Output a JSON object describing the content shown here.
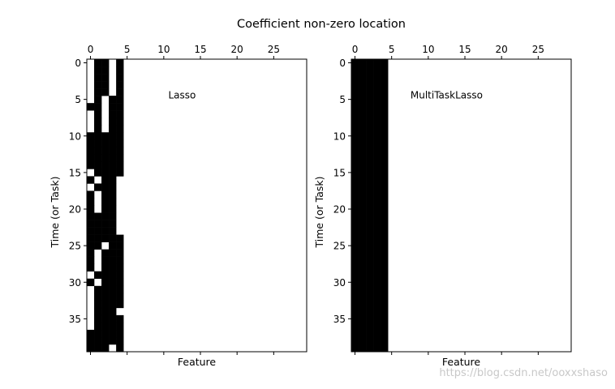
{
  "figure": {
    "title": "Coefficient non-zero location",
    "watermark": "https://blog.csdn.net/ooxxshaso"
  },
  "chart_data": [
    {
      "type": "heatmap",
      "annotation": "Lasso",
      "xlabel": "Feature",
      "ylabel": "Time (or Task)",
      "xlim": [
        -0.5,
        29.5
      ],
      "ylim": [
        39.5,
        -0.5
      ],
      "xticks": [
        0,
        5,
        10,
        15,
        20,
        25
      ],
      "xtick_labels": [
        "0",
        "5",
        "10",
        "15",
        "20",
        "25"
      ],
      "yticks": [
        0,
        5,
        10,
        15,
        20,
        25,
        30,
        35
      ],
      "ytick_labels": [
        "0",
        "5",
        "10",
        "15",
        "20",
        "25",
        "30",
        "35"
      ],
      "x_axis_position": "top",
      "colormap": "binary",
      "n_rows": 40,
      "n_cols": 30,
      "nonzero_rows": [
        [
          1,
          2,
          4
        ],
        [
          1,
          2,
          4
        ],
        [
          1,
          2,
          4
        ],
        [
          1,
          2,
          4
        ],
        [
          1,
          2,
          4
        ],
        [
          1,
          3,
          4
        ],
        [
          0,
          1,
          3,
          4
        ],
        [
          1,
          3,
          4
        ],
        [
          1,
          3,
          4
        ],
        [
          1,
          3,
          4
        ],
        [
          0,
          1,
          2,
          3,
          4
        ],
        [
          0,
          1,
          2,
          3,
          4
        ],
        [
          0,
          1,
          2,
          3,
          4
        ],
        [
          0,
          1,
          2,
          3,
          4
        ],
        [
          0,
          1,
          2,
          3,
          4
        ],
        [
          1,
          2,
          3,
          4
        ],
        [
          0,
          2,
          3
        ],
        [
          1,
          2,
          3
        ],
        [
          0,
          2,
          3
        ],
        [
          0,
          2,
          3
        ],
        [
          0,
          2,
          3
        ],
        [
          0,
          1,
          2,
          3
        ],
        [
          0,
          1,
          2,
          3
        ],
        [
          0,
          1,
          2,
          3
        ],
        [
          0,
          1,
          2,
          3,
          4
        ],
        [
          0,
          1,
          3,
          4
        ],
        [
          0,
          2,
          3,
          4
        ],
        [
          0,
          2,
          3,
          4
        ],
        [
          0,
          2,
          3,
          4
        ],
        [
          1,
          2,
          3,
          4
        ],
        [
          0,
          2,
          3,
          4
        ],
        [
          1,
          2,
          3,
          4
        ],
        [
          1,
          2,
          3,
          4
        ],
        [
          1,
          2,
          3,
          4
        ],
        [
          1,
          2,
          3
        ],
        [
          1,
          2,
          3,
          4
        ],
        [
          1,
          2,
          3,
          4
        ],
        [
          0,
          1,
          2,
          3,
          4
        ],
        [
          0,
          1,
          2,
          3,
          4
        ],
        [
          0,
          1,
          2,
          4
        ]
      ]
    },
    {
      "type": "heatmap",
      "annotation": "MultiTaskLasso",
      "xlabel": "Feature",
      "ylabel": "Time (or Task)",
      "xlim": [
        -0.5,
        29.5
      ],
      "ylim": [
        39.5,
        -0.5
      ],
      "xticks": [
        0,
        5,
        10,
        15,
        20,
        25
      ],
      "xtick_labels": [
        "0",
        "5",
        "10",
        "15",
        "20",
        "25"
      ],
      "yticks": [
        0,
        5,
        10,
        15,
        20,
        25,
        30,
        35
      ],
      "ytick_labels": [
        "0",
        "5",
        "10",
        "15",
        "20",
        "25",
        "30",
        "35"
      ],
      "x_axis_position": "top",
      "colormap": "binary",
      "n_rows": 40,
      "n_cols": 30,
      "nonzero_cols_all_rows": [
        0,
        1,
        2,
        3,
        4
      ]
    }
  ]
}
